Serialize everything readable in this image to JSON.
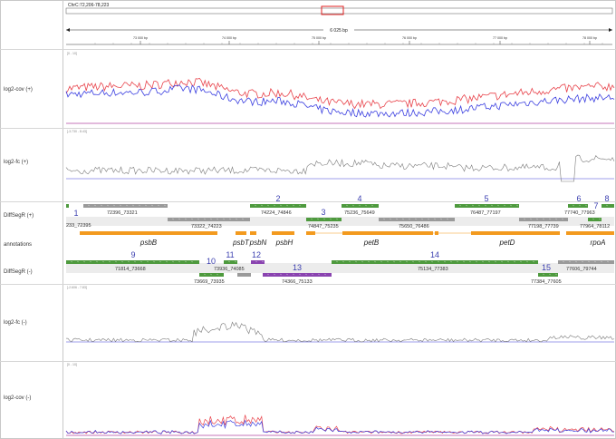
{
  "header": {
    "locus": "ChrC:72,206-78,223",
    "span": "6 025 bp",
    "ticks": [
      "72 000 bp",
      "73 000 bp",
      "74 000 bp",
      "75 000 bp",
      "76 000 bp",
      "77 000 bp",
      "78 000 bp"
    ]
  },
  "tracks": {
    "cov_plus": "log2-cov (+)",
    "fc_plus": "log2-fc (+)",
    "seg_plus": "DiffSegR (+)",
    "annotations": "annotations",
    "seg_minus": "DiffSegR (-)",
    "fc_minus": "log2-fc (-)",
    "cov_minus": "log2-cov (-)"
  },
  "ranges": {
    "cov_plus": "[0 - 10]",
    "fc_plus": "[-3.730 - 8.43]",
    "fc_minus": "[-2.606 - 7.83]",
    "cov_minus": "[0 - 10]"
  },
  "colors": {
    "red": "#e8424a",
    "blue": "#3b3fe0",
    "gray_line": "#7a7a7a",
    "green": "#4e9a3e",
    "gray_box": "#9a9a9a",
    "purple": "#8a44b0",
    "orange": "#f39a1e",
    "number": "#3b3fb0"
  },
  "plus_segments": [
    {
      "num": "1",
      "id": "233_72395",
      "color": "green"
    },
    {
      "num": "",
      "id": "72396_73321",
      "color": "gray"
    },
    {
      "num": "",
      "id": "73322_74223",
      "color": "gray"
    },
    {
      "num": "2",
      "id": "74224_74846",
      "color": "green"
    },
    {
      "num": "3",
      "id": "74847_75235",
      "color": "green"
    },
    {
      "num": "4",
      "id": "75236_75649",
      "color": "green"
    },
    {
      "num": "",
      "id": "75650_76486",
      "color": "gray"
    },
    {
      "num": "5",
      "id": "76487_77197",
      "color": "green"
    },
    {
      "num": "",
      "id": "77198_77739",
      "color": "gray"
    },
    {
      "num": "6",
      "id": "77740_77963",
      "color": "green"
    },
    {
      "num": "7",
      "id": "77964_78112",
      "color": "green"
    },
    {
      "num": "8",
      "id": "",
      "color": "green"
    }
  ],
  "genes": [
    "psbB",
    "psbT",
    "psbN",
    "psbH",
    "petB",
    "petD",
    "rpoA"
  ],
  "minus_segments": [
    {
      "num": "9",
      "id": "71814_73668",
      "color": "green"
    },
    {
      "num": "10",
      "id": "73669_73935",
      "color": "green"
    },
    {
      "num": "11",
      "id": "73936_74085",
      "color": "green"
    },
    {
      "num": "12",
      "id": "",
      "color": "purple"
    },
    {
      "num": "13",
      "id": "74366_75133",
      "color": "purple"
    },
    {
      "num": "14",
      "id": "75134_77383",
      "color": "green"
    },
    {
      "num": "15",
      "id": "77384_77605",
      "color": "green"
    },
    {
      "num": "",
      "id": "77606_79744",
      "color": "gray"
    }
  ]
}
